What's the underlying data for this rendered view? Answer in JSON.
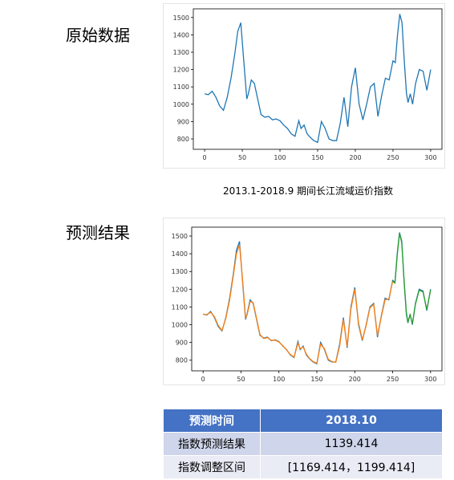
{
  "sections": [
    "原始数据",
    "预测结果"
  ],
  "caption": "2013.1-2018.9 期间长江流域运价指数",
  "chart_data": [
    {
      "type": "line",
      "x": [
        0,
        5,
        10,
        15,
        20,
        25,
        30,
        35,
        40,
        44,
        48,
        52,
        56,
        58,
        62,
        66,
        70,
        75,
        80,
        85,
        90,
        95,
        100,
        105,
        110,
        115,
        120,
        125,
        128,
        132,
        136,
        140,
        145,
        150,
        155,
        160,
        165,
        170,
        175,
        180,
        185,
        190,
        195,
        200,
        205,
        210,
        215,
        220,
        225,
        230,
        235,
        240,
        245,
        250,
        253,
        256,
        259,
        262,
        265,
        268,
        270,
        273,
        276,
        280,
        285,
        290,
        295,
        300
      ],
      "series": [
        {
          "color": "#1f77b4",
          "values": [
            1060,
            1055,
            1075,
            1040,
            990,
            965,
            1040,
            1150,
            1290,
            1420,
            1470,
            1250,
            1030,
            1060,
            1140,
            1120,
            1040,
            940,
            925,
            930,
            910,
            915,
            905,
            880,
            860,
            830,
            815,
            905,
            860,
            880,
            830,
            810,
            790,
            780,
            900,
            860,
            800,
            790,
            790,
            890,
            1040,
            870,
            1100,
            1210,
            1000,
            910,
            1000,
            1100,
            1120,
            930,
            1050,
            1150,
            1140,
            1250,
            1240,
            1400,
            1520,
            1470,
            1250,
            1060,
            1010,
            1060,
            1000,
            1120,
            1200,
            1190,
            1080,
            1200
          ]
        }
      ],
      "xlim": [
        -15,
        315
      ],
      "ylim": [
        740,
        1550
      ],
      "xticks": [
        0,
        50,
        100,
        150,
        200,
        250,
        300
      ],
      "yticks": [
        800,
        900,
        1000,
        1100,
        1200,
        1300,
        1400,
        1500
      ]
    },
    {
      "type": "line",
      "x": [
        0,
        5,
        10,
        15,
        20,
        25,
        30,
        35,
        40,
        44,
        48,
        52,
        56,
        58,
        62,
        66,
        70,
        75,
        80,
        85,
        90,
        95,
        100,
        105,
        110,
        115,
        120,
        125,
        128,
        132,
        136,
        140,
        145,
        150,
        155,
        160,
        165,
        170,
        175,
        180,
        185,
        190,
        195,
        200,
        205,
        210,
        215,
        220,
        225,
        230,
        235,
        240,
        245,
        250,
        253,
        256,
        259,
        262,
        265,
        268,
        270,
        273,
        276,
        280,
        285,
        290,
        295,
        300
      ],
      "series": [
        {
          "color": "#1f77b4",
          "values": [
            1060,
            1055,
            1075,
            1040,
            990,
            965,
            1040,
            1150,
            1290,
            1420,
            1470,
            1250,
            1030,
            1060,
            1140,
            1120,
            1040,
            940,
            925,
            930,
            910,
            915,
            905,
            880,
            860,
            830,
            815,
            905,
            860,
            880,
            830,
            810,
            790,
            780,
            900,
            860,
            800,
            790,
            790,
            890,
            1040,
            870,
            1100,
            1210,
            1000,
            910,
            1000,
            1100,
            1120,
            930,
            1050,
            1150,
            1140,
            1250,
            1240,
            1400,
            1520,
            1470,
            1250,
            1060,
            1010,
            1060,
            1000,
            1120,
            1200,
            1190,
            1080,
            1200
          ]
        },
        {
          "color": "#ff7f0e",
          "values": [
            1058,
            1057,
            1070,
            1045,
            995,
            968,
            1035,
            1140,
            1280,
            1400,
            1450,
            1260,
            1040,
            1055,
            1130,
            1125,
            1045,
            945,
            922,
            928,
            912,
            913,
            903,
            882,
            858,
            832,
            818,
            895,
            865,
            875,
            835,
            812,
            792,
            783,
            890,
            865,
            805,
            792,
            788,
            880,
            1030,
            878,
            1090,
            1200,
            1010,
            915,
            995,
            1095,
            1115,
            940,
            1045,
            1140,
            1145,
            1245,
            null,
            null,
            null,
            null,
            null,
            null,
            null,
            null,
            null,
            null,
            null,
            null,
            null,
            null
          ]
        },
        {
          "color": "#2ca02c",
          "values": [
            null,
            null,
            null,
            null,
            null,
            null,
            null,
            null,
            null,
            null,
            null,
            null,
            null,
            null,
            null,
            null,
            null,
            null,
            null,
            null,
            null,
            null,
            null,
            null,
            null,
            null,
            null,
            null,
            null,
            null,
            null,
            null,
            null,
            null,
            null,
            null,
            null,
            null,
            null,
            null,
            null,
            null,
            null,
            null,
            null,
            null,
            null,
            null,
            null,
            null,
            null,
            null,
            null,
            1245,
            1235,
            1390,
            1515,
            1460,
            1255,
            1070,
            1015,
            1055,
            1005,
            1115,
            1195,
            1185,
            1085,
            1195
          ]
        }
      ],
      "xlim": [
        -15,
        315
      ],
      "ylim": [
        740,
        1550
      ],
      "xticks": [
        0,
        50,
        100,
        150,
        200,
        250,
        300
      ],
      "yticks": [
        800,
        900,
        1000,
        1100,
        1200,
        1300,
        1400,
        1500
      ]
    }
  ],
  "table": {
    "header": [
      "预测时间",
      "2018.10"
    ],
    "rows": [
      [
        "指数预测结果",
        "1139.414"
      ],
      [
        "指数调整区间",
        "[1169.414，1199.414]"
      ]
    ]
  }
}
